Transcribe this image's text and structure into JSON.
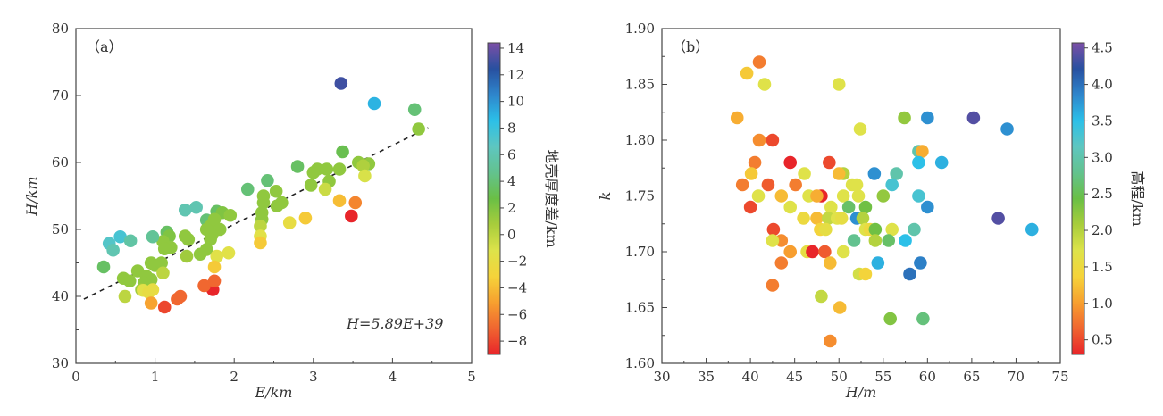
{
  "chart_data": [
    {
      "type": "scatter",
      "panel_label": "（a）",
      "xlabel": "E/km",
      "ylabel": "H/km",
      "xlim": [
        0,
        5
      ],
      "ylim": [
        30,
        80
      ],
      "xticks": [
        "0",
        "1",
        "2",
        "3",
        "4",
        "5"
      ],
      "yticks": [
        "30",
        "40",
        "50",
        "60",
        "70",
        "80"
      ],
      "grid": false,
      "fit_line": {
        "slope": 5.89,
        "intercept": 39,
        "x_range": [
          0.1,
          4.45
        ],
        "style": "dashed"
      },
      "annotation": "H=5.89E+39",
      "colorbar": {
        "label": "地壳厚度差/km",
        "range": [
          -9,
          14.4
        ],
        "ticks": [
          "−8",
          "−6",
          "−4",
          "−2",
          "0",
          "2",
          "4",
          "6",
          "8",
          "10",
          "12",
          "14"
        ],
        "tick_values": [
          -8,
          -6,
          -4,
          -2,
          0,
          2,
          4,
          6,
          8,
          10,
          12,
          14
        ]
      },
      "points": [
        [
          3.35,
          71.8,
          13
        ],
        [
          3.77,
          68.8,
          9
        ],
        [
          4.28,
          67.9,
          4
        ],
        [
          4.33,
          65,
          1.5
        ],
        [
          3.37,
          61.6,
          3
        ],
        [
          2.8,
          59.4,
          3.5
        ],
        [
          3.0,
          58.5,
          1.5
        ],
        [
          3.05,
          59,
          1.5
        ],
        [
          3.17,
          59,
          1.5
        ],
        [
          3.33,
          59,
          1.5
        ],
        [
          3.57,
          60,
          1.5
        ],
        [
          3.7,
          59.8,
          1.5
        ],
        [
          3.63,
          59.5,
          0.5
        ],
        [
          3.65,
          58,
          -1
        ],
        [
          2.97,
          56.6,
          1.5
        ],
        [
          3.2,
          57.2,
          1.5
        ],
        [
          3.15,
          56,
          -0.5
        ],
        [
          2.53,
          55.7,
          1.5
        ],
        [
          2.37,
          55,
          1.5
        ],
        [
          2.37,
          54,
          1.5
        ],
        [
          2.6,
          54,
          1.5
        ],
        [
          2.54,
          53.5,
          1.5
        ],
        [
          2.35,
          52.5,
          1.5
        ],
        [
          2.35,
          51.5,
          1.5
        ],
        [
          2.33,
          50.5,
          0
        ],
        [
          2.33,
          49,
          -1.5
        ],
        [
          2.33,
          48,
          -3.5
        ],
        [
          2.17,
          56,
          4
        ],
        [
          2.42,
          57.3,
          4
        ],
        [
          2.7,
          51,
          -2
        ],
        [
          2.9,
          51.7,
          -3.5
        ],
        [
          3.33,
          54.3,
          -4
        ],
        [
          3.53,
          54,
          -6
        ],
        [
          3.48,
          52,
          -9
        ],
        [
          1.38,
          52.9,
          6
        ],
        [
          1.52,
          53.3,
          6
        ],
        [
          1.65,
          51.4,
          4
        ],
        [
          1.78,
          52.7,
          3.5
        ],
        [
          1.85,
          52.5,
          2
        ],
        [
          1.95,
          52.1,
          1.5
        ],
        [
          1.7,
          50.5,
          1.5
        ],
        [
          1.75,
          51.5,
          1.5
        ],
        [
          1.82,
          50,
          1.5
        ],
        [
          1.72,
          49.2,
          1.5
        ],
        [
          1.65,
          50,
          1.5
        ],
        [
          1.15,
          49.6,
          3.5
        ],
        [
          1.18,
          49,
          2
        ],
        [
          1.1,
          48.2,
          1.5
        ],
        [
          1.2,
          47.3,
          1.5
        ],
        [
          1.12,
          47.1,
          1.5
        ],
        [
          1.38,
          49,
          1.5
        ],
        [
          1.42,
          48.5,
          1.5
        ],
        [
          1.7,
          48.5,
          1.5
        ],
        [
          1.65,
          47,
          1.5
        ],
        [
          1.57,
          46.3,
          1.5
        ],
        [
          1.4,
          46,
          1
        ],
        [
          1.78,
          46,
          -1.5
        ],
        [
          1.93,
          46.5,
          -1.5
        ],
        [
          1.75,
          44.4,
          -3.5
        ],
        [
          1.73,
          41,
          -9
        ],
        [
          1.75,
          42.3,
          -7
        ],
        [
          1.62,
          41.6,
          -7
        ],
        [
          0.42,
          47.9,
          7
        ],
        [
          0.47,
          46.9,
          6
        ],
        [
          0.56,
          48.9,
          7.5
        ],
        [
          0.69,
          48.3,
          5.5
        ],
        [
          0.35,
          44.4,
          3.5
        ],
        [
          0.97,
          48.9,
          5
        ],
        [
          0.95,
          45,
          1.5
        ],
        [
          1.0,
          44.6,
          1.5
        ],
        [
          1.08,
          45,
          1.5
        ],
        [
          0.78,
          43.8,
          1.5
        ],
        [
          0.89,
          43,
          1.5
        ],
        [
          0.95,
          42.5,
          1.5
        ],
        [
          0.86,
          42,
          1.5
        ],
        [
          0.83,
          41,
          1
        ],
        [
          0.6,
          42.7,
          1.5
        ],
        [
          0.68,
          42.3,
          1.5
        ],
        [
          1.1,
          43.5,
          0
        ],
        [
          0.62,
          40,
          0
        ],
        [
          0.85,
          40.9,
          -1.5
        ],
        [
          0.92,
          40.6,
          -2
        ],
        [
          0.97,
          41,
          -2
        ],
        [
          0.95,
          39,
          -5
        ],
        [
          1.12,
          38.4,
          -8
        ],
        [
          1.28,
          39.6,
          -7
        ],
        [
          1.32,
          40,
          -7
        ]
      ]
    },
    {
      "type": "scatter",
      "panel_label": "（b）",
      "xlabel": "H/m",
      "ylabel": "k",
      "xlim": [
        30,
        75
      ],
      "ylim": [
        1.6,
        1.9
      ],
      "xticks": [
        "30",
        "35",
        "40",
        "45",
        "50",
        "55",
        "60",
        "65",
        "70",
        "75"
      ],
      "yticks": [
        "1.60",
        "1.65",
        "1.70",
        "1.75",
        "1.80",
        "1.85",
        "1.90"
      ],
      "grid": false,
      "colorbar": {
        "label": "高程/km",
        "range": [
          0.3,
          4.57
        ],
        "ticks": [
          "0.5",
          "1.0",
          "1.5",
          "2.0",
          "2.5",
          "3.0",
          "3.5",
          "4.0",
          "4.5"
        ],
        "tick_values": [
          0.5,
          1.0,
          1.5,
          2.0,
          2.5,
          3.0,
          3.5,
          4.0,
          4.5
        ]
      },
      "points": [
        [
          41,
          1.87,
          0.8
        ],
        [
          39.6,
          1.86,
          1.3
        ],
        [
          41.6,
          1.85,
          1.7
        ],
        [
          50,
          1.85,
          1.7
        ],
        [
          38.5,
          1.82,
          1.1
        ],
        [
          57.4,
          1.82,
          2.2
        ],
        [
          60,
          1.82,
          3.8
        ],
        [
          65.2,
          1.82,
          4.4
        ],
        [
          52.4,
          1.81,
          1.7
        ],
        [
          69,
          1.81,
          3.8
        ],
        [
          41,
          1.8,
          0.9
        ],
        [
          42.5,
          1.8,
          0.5
        ],
        [
          59,
          1.79,
          3.0
        ],
        [
          59.4,
          1.79,
          1.1
        ],
        [
          44.5,
          1.78,
          0.3
        ],
        [
          48.9,
          1.78,
          0.5
        ],
        [
          59,
          1.78,
          3.5
        ],
        [
          61.6,
          1.78,
          3.6
        ],
        [
          40.5,
          1.78,
          0.8
        ],
        [
          40.1,
          1.77,
          1.3
        ],
        [
          46.1,
          1.77,
          1.7
        ],
        [
          50.5,
          1.77,
          2.0
        ],
        [
          50,
          1.77,
          1.2
        ],
        [
          54,
          1.77,
          3.8
        ],
        [
          56.5,
          1.77,
          3.0
        ],
        [
          39.1,
          1.76,
          0.8
        ],
        [
          42,
          1.76,
          0.6
        ],
        [
          45.1,
          1.76,
          0.8
        ],
        [
          51.5,
          1.76,
          1.7
        ],
        [
          52,
          1.76,
          1.7
        ],
        [
          56,
          1.76,
          3.3
        ],
        [
          40.9,
          1.75,
          1.7
        ],
        [
          43.5,
          1.75,
          1.2
        ],
        [
          46.6,
          1.75,
          1.7
        ],
        [
          48,
          1.75,
          0.3
        ],
        [
          47.5,
          1.75,
          1.1
        ],
        [
          50.5,
          1.75,
          1.7
        ],
        [
          52.2,
          1.75,
          1.7
        ],
        [
          55,
          1.75,
          2.2
        ],
        [
          59,
          1.75,
          3.3
        ],
        [
          40,
          1.74,
          0.5
        ],
        [
          44.5,
          1.74,
          1.7
        ],
        [
          49.1,
          1.74,
          1.7
        ],
        [
          51.1,
          1.74,
          2.6
        ],
        [
          53,
          1.74,
          2.4
        ],
        [
          60,
          1.74,
          3.8
        ],
        [
          46,
          1.73,
          1.5
        ],
        [
          47.5,
          1.73,
          1.2
        ],
        [
          48.8,
          1.73,
          1.9
        ],
        [
          49.8,
          1.73,
          1.7
        ],
        [
          50.3,
          1.73,
          1.6
        ],
        [
          52,
          1.73,
          3.8
        ],
        [
          52.7,
          1.73,
          2.0
        ],
        [
          68,
          1.73,
          4.4
        ],
        [
          42.6,
          1.72,
          0.5
        ],
        [
          47.9,
          1.72,
          1.4
        ],
        [
          48.5,
          1.72,
          1.6
        ],
        [
          53,
          1.72,
          1.7
        ],
        [
          53.5,
          1.72,
          1.5
        ],
        [
          54.1,
          1.72,
          2.4
        ],
        [
          56,
          1.72,
          1.7
        ],
        [
          58.5,
          1.72,
          3.0
        ],
        [
          71.8,
          1.72,
          3.6
        ],
        [
          43.5,
          1.71,
          0.9
        ],
        [
          42.5,
          1.71,
          1.7
        ],
        [
          51.7,
          1.71,
          2.8
        ],
        [
          54.1,
          1.71,
          2.0
        ],
        [
          55.6,
          1.71,
          2.6
        ],
        [
          57.5,
          1.71,
          3.5
        ],
        [
          44.5,
          1.7,
          1.0
        ],
        [
          46.4,
          1.7,
          1.6
        ],
        [
          47,
          1.7,
          0.3
        ],
        [
          48.4,
          1.7,
          0.6
        ],
        [
          50.5,
          1.7,
          1.7
        ],
        [
          43.5,
          1.69,
          0.8
        ],
        [
          49,
          1.69,
          1.2
        ],
        [
          54.4,
          1.69,
          3.6
        ],
        [
          59.2,
          1.69,
          3.9
        ],
        [
          52.3,
          1.68,
          1.8
        ],
        [
          53,
          1.68,
          1.4
        ],
        [
          58,
          1.68,
          4.0
        ],
        [
          42.5,
          1.67,
          0.8
        ],
        [
          48,
          1.66,
          1.9
        ],
        [
          50.1,
          1.65,
          1.2
        ],
        [
          55.8,
          1.64,
          2.3
        ],
        [
          59.5,
          1.64,
          2.7
        ],
        [
          49,
          1.62,
          0.9
        ]
      ]
    }
  ],
  "colormap": [
    "#e8252a",
    "#f06530",
    "#f7a02f",
    "#f5d33a",
    "#dde34a",
    "#a8cd3c",
    "#6abf45",
    "#63c28e",
    "#5ec6c0",
    "#2cc0e8",
    "#2e86cc",
    "#2850a0",
    "#7b4fa6"
  ]
}
